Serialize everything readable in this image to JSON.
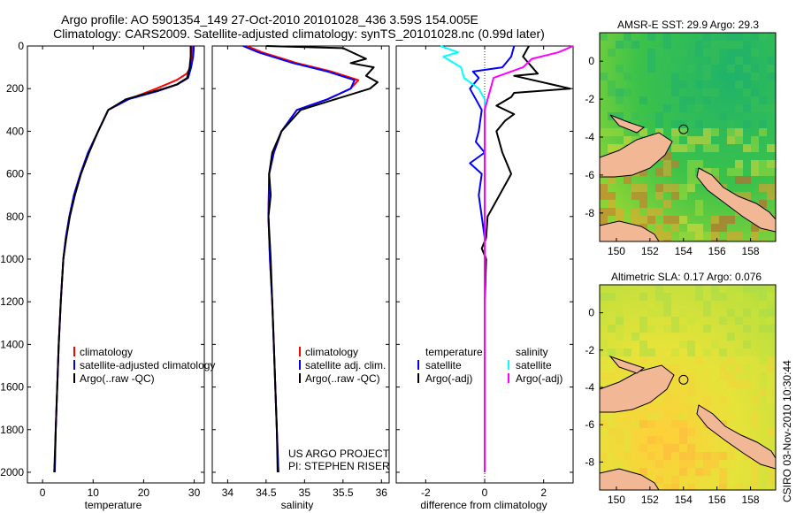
{
  "header": {
    "title_line1": "Argo profile: AO 5901354_149 27-Oct-2010 20101028_436 3.59S 154.005E",
    "title_line2": "Climatology: CARS2009. Satellite-adjusted climatology: synTS_20101028.nc (0.99d later)"
  },
  "footer": {
    "project_line1": "US ARGO PROJECT",
    "project_line2": "PI: STEPHEN RISER",
    "csiro_stamp": "CSIRO 03-Nov-2010 10:30:44"
  },
  "colors": {
    "climatology": "#ff0000",
    "satellite": "#0000ff",
    "argo": "#000000",
    "salinity_satellite": "#00ffff",
    "salinity_argo": "#ff00ff"
  },
  "chart_data": [
    {
      "type": "line",
      "xlabel": "temperature",
      "ylabel": "",
      "xlim": [
        -3,
        32
      ],
      "ylim": [
        2050,
        0
      ],
      "xticks": [
        0,
        10,
        20,
        30
      ],
      "yticks": [
        0,
        200,
        400,
        600,
        800,
        1000,
        1200,
        1400,
        1600,
        1800,
        2000
      ],
      "legend": {
        "placement": "lower-right",
        "entries": [
          "climatology",
          "satellite-adjusted climatology",
          "Argo(..raw -QC)"
        ]
      },
      "series": [
        {
          "name": "climatology",
          "color": "#ff0000",
          "points": [
            [
              29.6,
              0
            ],
            [
              29.6,
              20
            ],
            [
              29.5,
              50
            ],
            [
              29.3,
              100
            ],
            [
              28.5,
              130
            ],
            [
              26.5,
              160
            ],
            [
              22.5,
              200
            ],
            [
              17,
              250
            ],
            [
              13,
              300
            ],
            [
              11,
              400
            ],
            [
              9,
              500
            ],
            [
              7.5,
              600
            ],
            [
              6.2,
              700
            ],
            [
              5.3,
              800
            ],
            [
              4.6,
              900
            ],
            [
              4.1,
              1000
            ],
            [
              3.6,
              1200
            ],
            [
              3.2,
              1400
            ],
            [
              2.9,
              1600
            ],
            [
              2.6,
              1800
            ],
            [
              2.4,
              2000
            ]
          ]
        },
        {
          "name": "satellite-adjusted climatology",
          "color": "#0000ff",
          "points": [
            [
              29.9,
              0
            ],
            [
              29.9,
              20
            ],
            [
              29.8,
              50
            ],
            [
              29.4,
              100
            ],
            [
              28.8,
              150
            ],
            [
              26.7,
              180
            ],
            [
              23,
              210
            ],
            [
              17,
              250
            ],
            [
              13,
              300
            ],
            [
              11,
              400
            ],
            [
              9,
              500
            ],
            [
              7.5,
              600
            ],
            [
              6.2,
              700
            ],
            [
              5.3,
              800
            ],
            [
              4.6,
              900
            ],
            [
              4.1,
              1000
            ],
            [
              3.6,
              1200
            ],
            [
              3.2,
              1400
            ],
            [
              2.9,
              1600
            ],
            [
              2.6,
              1800
            ],
            [
              2.4,
              2000
            ]
          ]
        },
        {
          "name": "Argo(..raw -QC)",
          "color": "#000000",
          "points": [
            [
              29.3,
              0
            ],
            [
              29.3,
              20
            ],
            [
              29.3,
              50
            ],
            [
              29.1,
              100
            ],
            [
              28.6,
              150
            ],
            [
              26.6,
              180
            ],
            [
              24,
              200
            ],
            [
              16.5,
              250
            ],
            [
              13,
              300
            ],
            [
              11,
              400
            ],
            [
              9.2,
              500
            ],
            [
              7.6,
              600
            ],
            [
              6.4,
              700
            ],
            [
              5.4,
              800
            ],
            [
              4.7,
              900
            ],
            [
              4.1,
              1000
            ],
            [
              3.6,
              1200
            ],
            [
              3.2,
              1400
            ],
            [
              2.9,
              1600
            ],
            [
              2.6,
              1800
            ],
            [
              2.3,
              2000
            ]
          ]
        }
      ]
    },
    {
      "type": "line",
      "xlabel": "salinity",
      "xlim": [
        33.8,
        36.1
      ],
      "ylim": [
        2050,
        0
      ],
      "xticks": [
        34,
        34.5,
        35,
        35.5,
        36
      ],
      "legend": {
        "placement": "lower-right",
        "entries": [
          "climatology",
          "satellite adj. clim.",
          "Argo(..raw -QC)"
        ]
      },
      "series": [
        {
          "name": "climatology",
          "color": "#ff0000",
          "points": [
            [
              34.25,
              0
            ],
            [
              34.45,
              30
            ],
            [
              34.9,
              80
            ],
            [
              35.35,
              120
            ],
            [
              35.7,
              160
            ],
            [
              35.6,
              200
            ],
            [
              35.3,
              250
            ],
            [
              34.9,
              300
            ],
            [
              34.7,
              400
            ],
            [
              34.6,
              500
            ],
            [
              34.54,
              600
            ],
            [
              34.53,
              800
            ],
            [
              34.55,
              1000
            ],
            [
              34.58,
              1200
            ],
            [
              34.6,
              1400
            ],
            [
              34.62,
              1600
            ],
            [
              34.64,
              1800
            ],
            [
              34.66,
              2000
            ]
          ]
        },
        {
          "name": "satellite adj. clim.",
          "color": "#0000ff",
          "points": [
            [
              34.2,
              0
            ],
            [
              34.4,
              30
            ],
            [
              34.85,
              80
            ],
            [
              35.3,
              120
            ],
            [
              35.65,
              160
            ],
            [
              35.6,
              200
            ],
            [
              35.3,
              250
            ],
            [
              34.9,
              300
            ],
            [
              34.7,
              400
            ],
            [
              34.6,
              500
            ],
            [
              34.54,
              600
            ],
            [
              34.53,
              800
            ],
            [
              34.55,
              1000
            ],
            [
              34.58,
              1200
            ],
            [
              34.6,
              1400
            ],
            [
              34.62,
              1600
            ],
            [
              34.64,
              1800
            ],
            [
              34.66,
              2000
            ]
          ]
        },
        {
          "name": "Argo(..raw -QC)",
          "color": "#000000",
          "points": [
            [
              34.5,
              0
            ],
            [
              35.5,
              10
            ],
            [
              35.8,
              60
            ],
            [
              35.6,
              80
            ],
            [
              35.9,
              100
            ],
            [
              35.8,
              140
            ],
            [
              35.95,
              170
            ],
            [
              35.85,
              200
            ],
            [
              35.4,
              250
            ],
            [
              34.95,
              300
            ],
            [
              34.7,
              400
            ],
            [
              34.58,
              500
            ],
            [
              34.54,
              600
            ],
            [
              34.56,
              700
            ],
            [
              34.53,
              800
            ],
            [
              34.56,
              1000
            ],
            [
              34.58,
              1200
            ],
            [
              34.6,
              1400
            ],
            [
              34.62,
              1600
            ],
            [
              34.64,
              1800
            ],
            [
              34.65,
              2000
            ]
          ]
        }
      ]
    },
    {
      "type": "line",
      "xlabel": "difference from climatology",
      "xlim": [
        -3,
        3
      ],
      "ylim": [
        2050,
        0
      ],
      "xticks": [
        -2,
        0,
        2
      ],
      "legend": {
        "placement": "lower-center",
        "entries": [
          "temperature",
          "satellite",
          "Argo(-adj)",
          "salinity",
          "satellite",
          "Argo(-adj)"
        ]
      },
      "series": [
        {
          "name": "temperature satellite",
          "color": "#0000ff",
          "points": [
            [
              1.0,
              0
            ],
            [
              0.9,
              50
            ],
            [
              0.6,
              100
            ],
            [
              -0.4,
              120
            ],
            [
              -0.2,
              150
            ],
            [
              -0.5,
              200
            ],
            [
              -0.3,
              250
            ],
            [
              -0.1,
              300
            ],
            [
              -0.2,
              400
            ],
            [
              -0.3,
              450
            ],
            [
              0.0,
              500
            ],
            [
              -0.5,
              550
            ],
            [
              -0.1,
              600
            ],
            [
              -0.2,
              700
            ],
            [
              -0.1,
              800
            ],
            [
              0,
              900
            ],
            [
              0,
              1000
            ],
            [
              0,
              1200
            ],
            [
              0,
              1400
            ],
            [
              0,
              1600
            ],
            [
              0,
              1800
            ],
            [
              0,
              2000
            ]
          ]
        },
        {
          "name": "temperature Argo(-adj)",
          "color": "#000000",
          "points": [
            [
              1.5,
              0
            ],
            [
              1.3,
              50
            ],
            [
              1.8,
              130
            ],
            [
              1.0,
              140
            ],
            [
              2.9,
              200
            ],
            [
              1.0,
              220
            ],
            [
              0.9,
              240
            ],
            [
              0.4,
              280
            ],
            [
              1.0,
              320
            ],
            [
              0.7,
              350
            ],
            [
              0.4,
              400
            ],
            [
              0.6,
              500
            ],
            [
              0.9,
              600
            ],
            [
              0.5,
              700
            ],
            [
              0.3,
              750
            ],
            [
              0.1,
              800
            ],
            [
              0.05,
              900
            ],
            [
              -0.1,
              950
            ],
            [
              0.05,
              1000
            ],
            [
              0,
              1200
            ],
            [
              0,
              1400
            ],
            [
              0,
              1600
            ],
            [
              0,
              1800
            ],
            [
              0,
              2000
            ]
          ]
        },
        {
          "name": "salinity satellite",
          "color": "#00ffff",
          "points": [
            [
              -1.5,
              0
            ],
            [
              -0.9,
              30
            ],
            [
              -1.4,
              50
            ],
            [
              -0.8,
              100
            ],
            [
              -0.7,
              150
            ],
            [
              -0.2,
              200
            ],
            [
              0,
              250
            ],
            [
              0,
              300
            ],
            [
              0,
              400
            ],
            [
              0,
              600
            ],
            [
              0,
              800
            ],
            [
              0,
              1000
            ],
            [
              0,
              1200
            ],
            [
              0,
              1400
            ],
            [
              0,
              1600
            ],
            [
              0,
              1800
            ],
            [
              0,
              2000
            ]
          ]
        },
        {
          "name": "salinity Argo(-adj)",
          "color": "#ff00ff",
          "points": [
            [
              3.0,
              0
            ],
            [
              2.5,
              30
            ],
            [
              1.6,
              60
            ],
            [
              1.3,
              100
            ],
            [
              0.3,
              150
            ],
            [
              0.2,
              200
            ],
            [
              0.1,
              250
            ],
            [
              0,
              300
            ],
            [
              0,
              400
            ],
            [
              0,
              600
            ],
            [
              0,
              800
            ],
            [
              0,
              1000
            ],
            [
              0,
              1200
            ],
            [
              0,
              1400
            ],
            [
              0,
              1600
            ],
            [
              0,
              1800
            ],
            [
              0,
              2000
            ]
          ]
        }
      ]
    },
    {
      "type": "heatmap",
      "title": "AMSR-E SST: 29.9 Argo: 29.3",
      "xlim": [
        149,
        159.5
      ],
      "ylim": [
        -9.5,
        1.5
      ],
      "xticks": [
        150,
        152,
        154,
        156,
        158
      ],
      "yticks": [
        -8,
        -6,
        -4,
        -2,
        0
      ],
      "marker": {
        "lon": 154.005,
        "lat": -3.59
      },
      "grid": false
    },
    {
      "type": "heatmap",
      "title": "Altimetric SLA: 0.17 Argo: 0.076",
      "xlim": [
        149,
        159.5
      ],
      "ylim": [
        -9.5,
        1.5
      ],
      "xticks": [
        150,
        152,
        154,
        156,
        158
      ],
      "yticks": [
        -8,
        -6,
        -4,
        -2,
        0
      ],
      "marker": {
        "lon": 154.005,
        "lat": -3.59
      },
      "grid": false
    }
  ]
}
